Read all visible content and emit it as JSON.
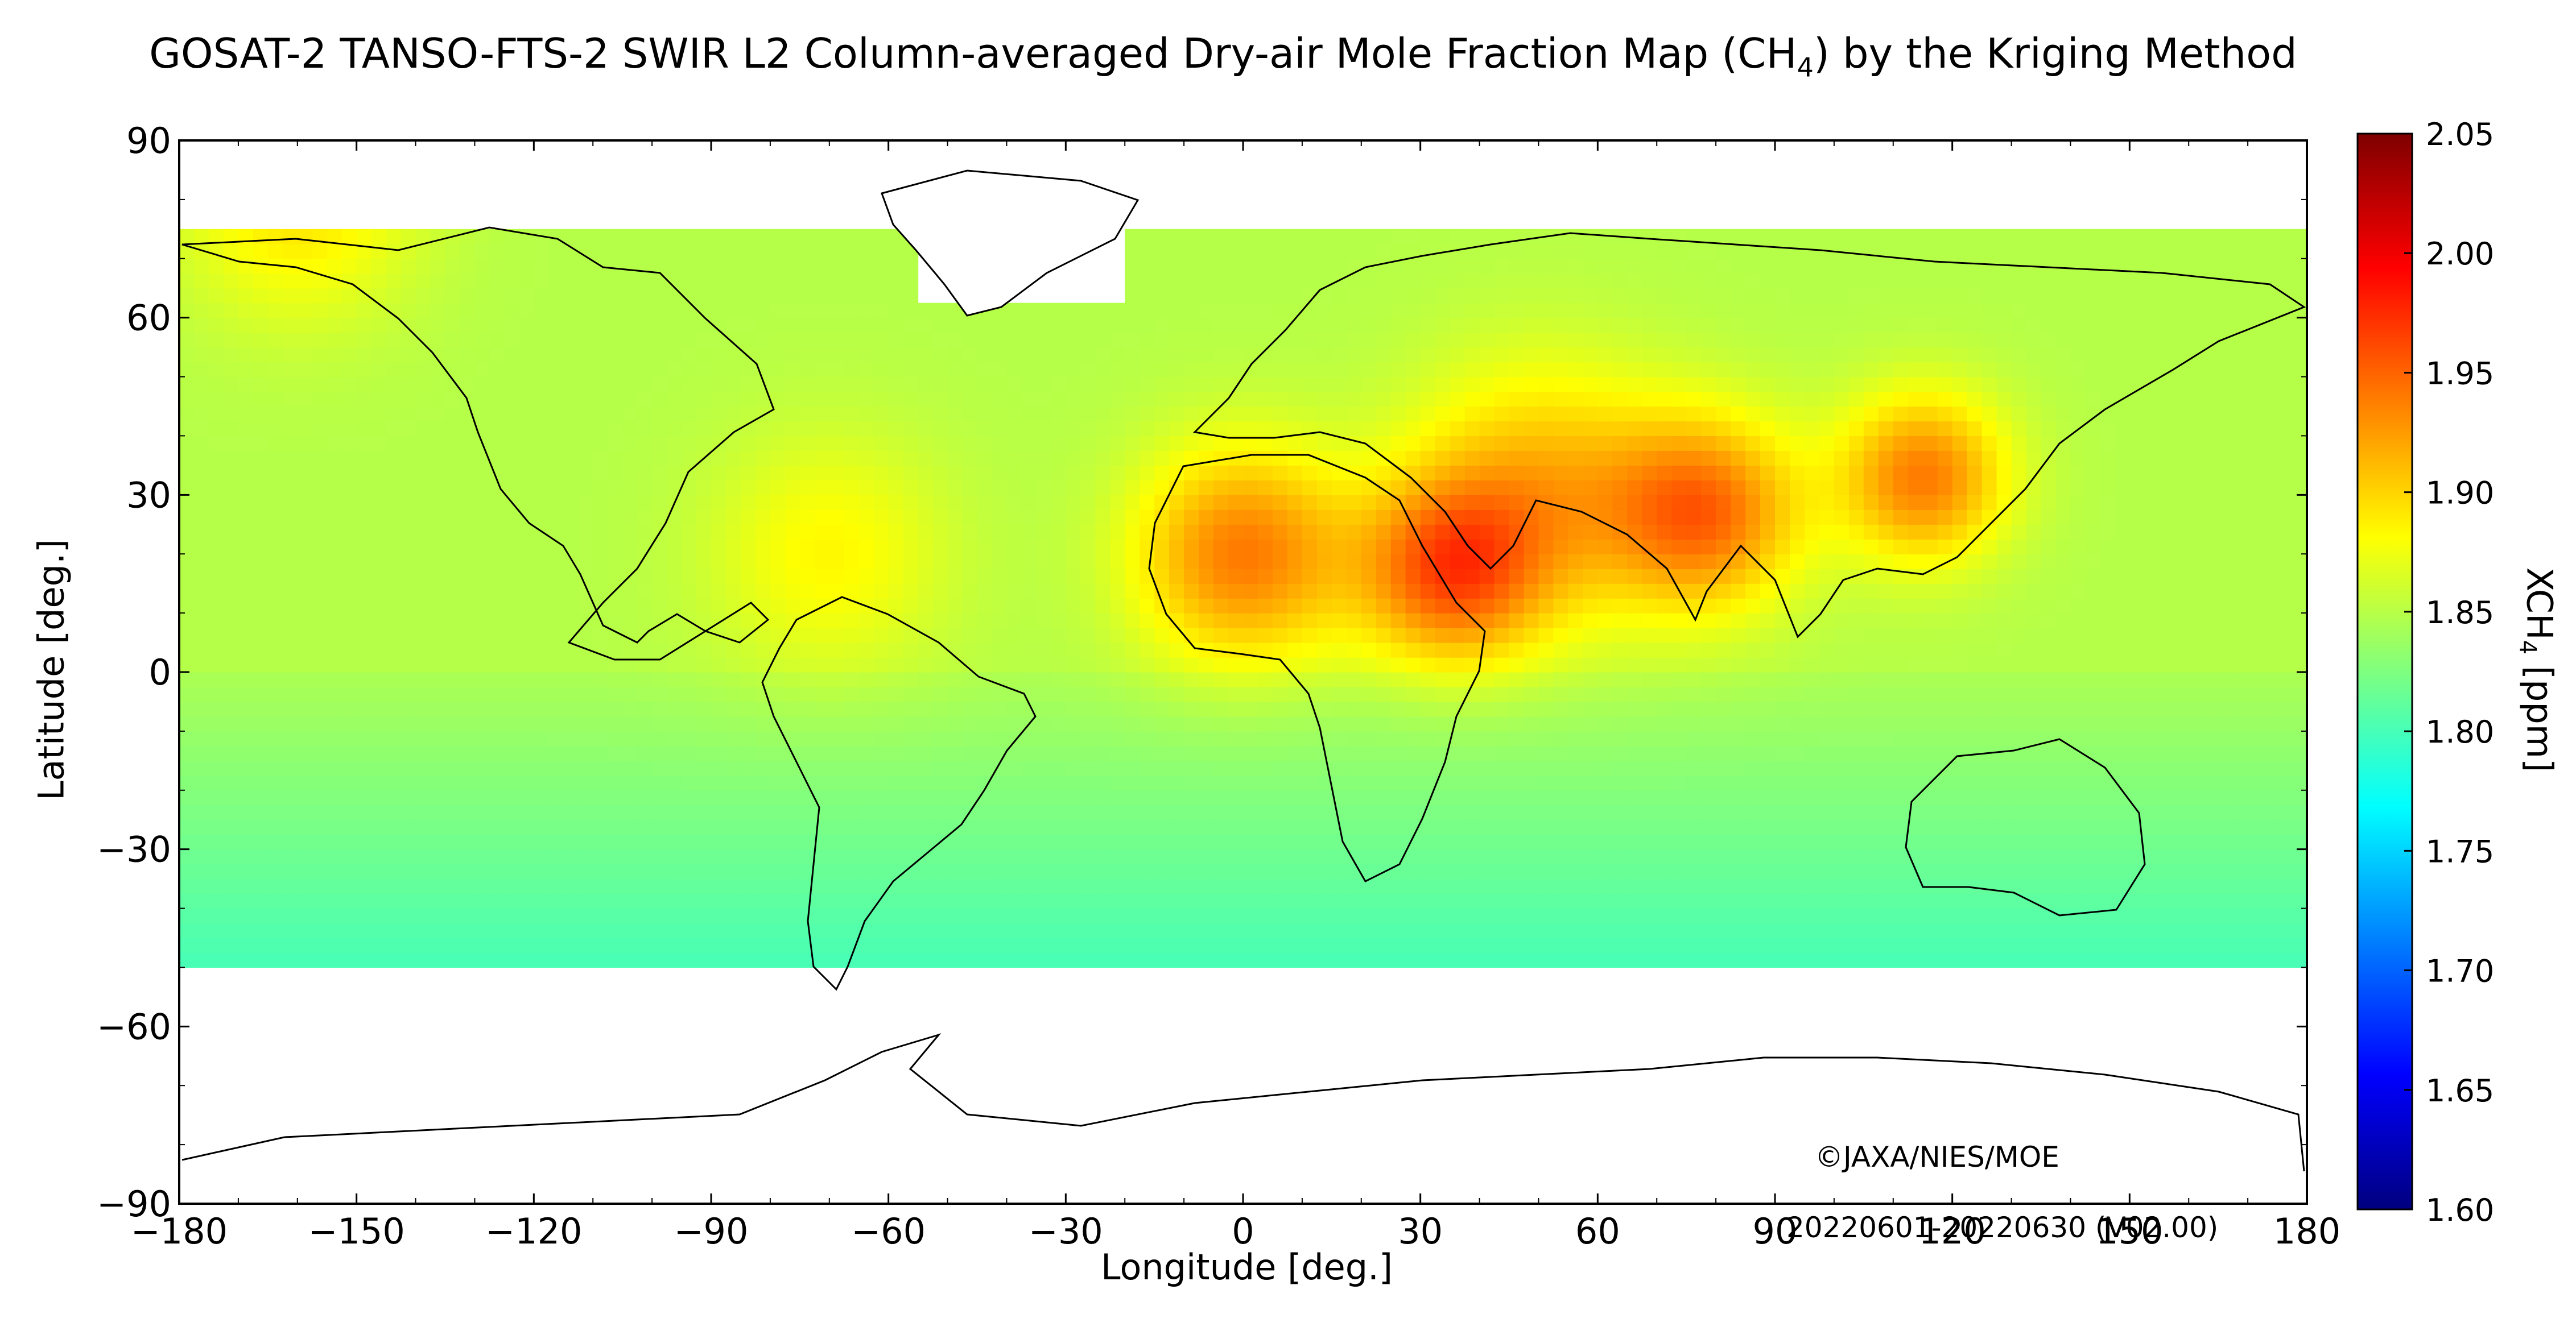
{
  "title_main": "GOSAT-2 TANSO-FTS-2 SWIR L2 Column-averaged Dry-air Mole Fraction Map (CH",
  "title_sub": "4",
  "title_end": ") by the Kriging Method",
  "credit": "©JAXA/NIES/MOE",
  "period": "20220601-20220630 (V02.00)",
  "xlabel": "Longitude [deg.]",
  "ylabel": "Latitude [deg.]",
  "cb_label_main": "XCH",
  "cb_label_sub": "4",
  "cb_label_end": " [ppm]",
  "chart_data": {
    "type": "heatmap",
    "x_range": [
      -180,
      180
    ],
    "y_range": [
      -90,
      90
    ],
    "x_ticks": [
      "−180",
      "−150",
      "−120",
      "−90",
      "−60",
      "−30",
      "0",
      "30",
      "60",
      "90",
      "120",
      "150",
      "180"
    ],
    "x_tick_values": [
      -180,
      -150,
      -120,
      -90,
      -60,
      -30,
      0,
      30,
      60,
      90,
      120,
      150,
      180
    ],
    "y_ticks": [
      "90",
      "60",
      "30",
      "0",
      "−30",
      "−60",
      "−90"
    ],
    "y_tick_values": [
      90,
      60,
      30,
      0,
      -30,
      -60,
      -90
    ],
    "colorbar": {
      "range": [
        1.6,
        2.05
      ],
      "ticks": [
        "2.05",
        "2.00",
        "1.95",
        "1.90",
        "1.85",
        "1.80",
        "1.75",
        "1.70",
        "1.65",
        "1.60"
      ],
      "tick_values": [
        2.05,
        2.0,
        1.95,
        1.9,
        1.85,
        1.8,
        1.75,
        1.7,
        1.65,
        1.6
      ],
      "colors": [
        "#00007f",
        "#0000ff",
        "#007fff",
        "#00ffff",
        "#7fff7f",
        "#ffff00",
        "#ff7f00",
        "#ff0000",
        "#7f0000"
      ]
    },
    "data_coverage_lat": [
      -50,
      75
    ],
    "background_value": 1.845,
    "hotspots": [
      {
        "lon": 0,
        "lat": 20,
        "value": 1.935,
        "spread": 18
      },
      {
        "lon": 35,
        "lat": 17,
        "value": 1.94,
        "spread": 15
      },
      {
        "lon": 78,
        "lat": 27,
        "value": 1.94,
        "spread": 16
      },
      {
        "lon": 115,
        "lat": 33,
        "value": 1.935,
        "spread": 14
      },
      {
        "lon": 50,
        "lat": 30,
        "value": 1.91,
        "spread": 22
      },
      {
        "lon": -70,
        "lat": 20,
        "value": 1.88,
        "spread": 20
      },
      {
        "lon": -160,
        "lat": 80,
        "value": 1.89,
        "spread": 20
      }
    ]
  }
}
